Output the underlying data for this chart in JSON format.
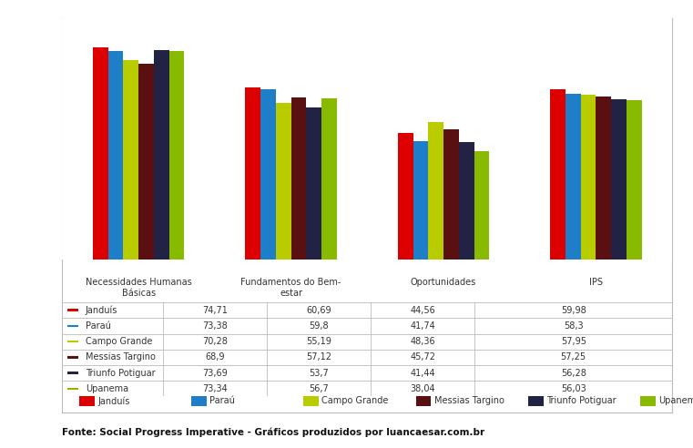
{
  "municipalities": [
    "Janduís",
    "Paraú",
    "Campo Grande",
    "Messias Targino",
    "Triunfo Potiguar",
    "Upanema"
  ],
  "colors": [
    "#dd0000",
    "#1e7ec8",
    "#b8cc00",
    "#5a1010",
    "#222244",
    "#88bb00"
  ],
  "values": {
    "Janduís": [
      74.71,
      60.69,
      44.56,
      59.98
    ],
    "Paraú": [
      73.38,
      59.8,
      41.74,
      58.3
    ],
    "Campo Grande": [
      70.28,
      55.19,
      48.36,
      57.95
    ],
    "Messias Targino": [
      68.9,
      57.12,
      45.72,
      57.25
    ],
    "Triunfo Potiguar": [
      73.69,
      53.7,
      41.44,
      56.28
    ],
    "Upanema": [
      73.34,
      56.7,
      38.04,
      56.03
    ]
  },
  "table_rows": [
    [
      "Janduís",
      "74,71",
      "60,69",
      "44,56",
      "59,98"
    ],
    [
      "Paraú",
      "73,38",
      "59,8",
      "41,74",
      "58,3"
    ],
    [
      "Campo Grande",
      "70,28",
      "55,19",
      "48,36",
      "57,95"
    ],
    [
      "Messias Targino",
      "68,9",
      "57,12",
      "45,72",
      "57,25"
    ],
    [
      "Triunfo Potiguar",
      "73,69",
      "53,7",
      "41,44",
      "56,28"
    ],
    [
      "Upanema",
      "73,34",
      "56,7",
      "38,04",
      "56,03"
    ]
  ],
  "col_headers": [
    "Necessidades Humanas\nBásicas",
    "Fundamentos do Bem-\nestar",
    "Oportunidades",
    "IPS"
  ],
  "source_text": "Fonte: Social Progress Imperative - Gráficos produzidos por luancaesar.com.br",
  "background_color": "#ffffff",
  "panel_color": "#ffffff",
  "bar_width": 0.1,
  "ylim_max": 85
}
